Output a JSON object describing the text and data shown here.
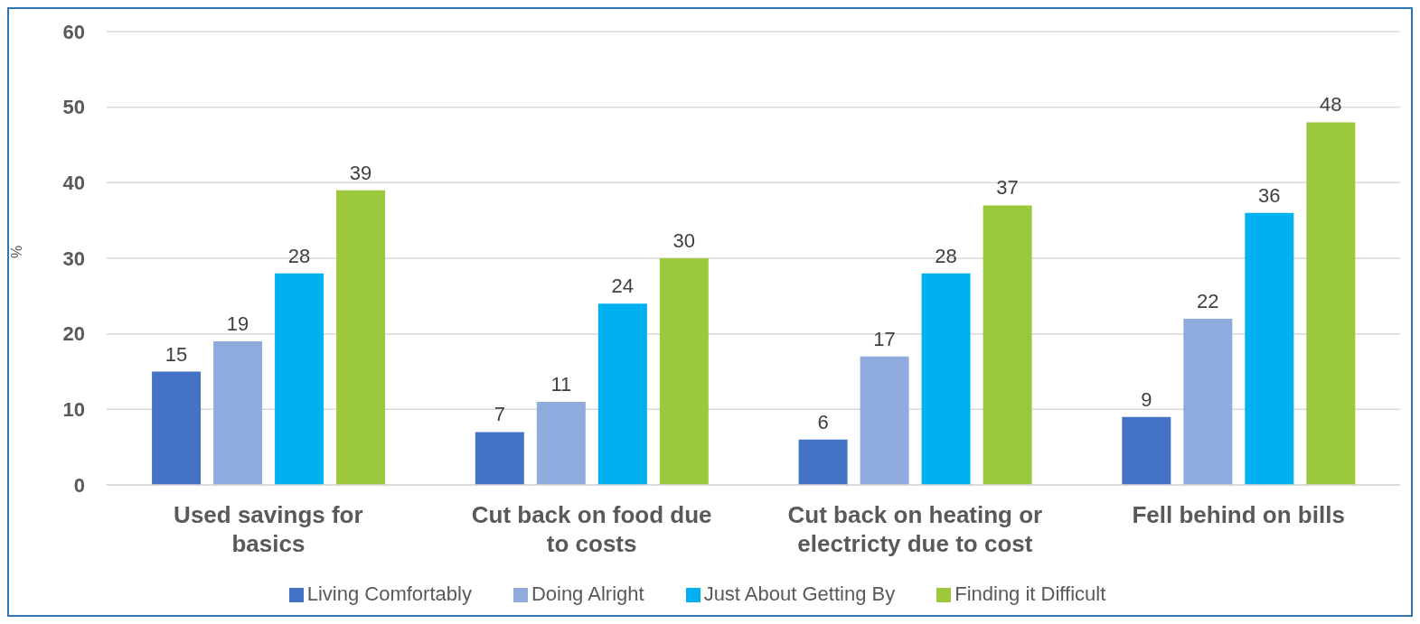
{
  "chart_data": {
    "type": "bar",
    "ylabel": "%",
    "categories": [
      "Used savings for basics",
      "Cut back on food due to costs",
      "Cut back on heating or electricty due to cost",
      "Fell behind on bills"
    ],
    "series": [
      {
        "name": "Living Comfortably",
        "color": "#4472c4",
        "values": [
          15,
          7,
          6,
          9
        ]
      },
      {
        "name": "Doing Alright",
        "color": "#8faadc",
        "values": [
          19,
          11,
          17,
          22
        ]
      },
      {
        "name": "Just About Getting By",
        "color": "#00b0f0",
        "values": [
          28,
          24,
          28,
          36
        ]
      },
      {
        "name": "Finding it Difficult",
        "color": "#9bc83c",
        "values": [
          39,
          30,
          37,
          48
        ]
      }
    ],
    "ylim": [
      0,
      60
    ],
    "yticks": [
      0,
      10,
      20,
      30,
      40,
      50,
      60
    ],
    "grid": "y",
    "legend": "bottom",
    "data_labels": true
  }
}
